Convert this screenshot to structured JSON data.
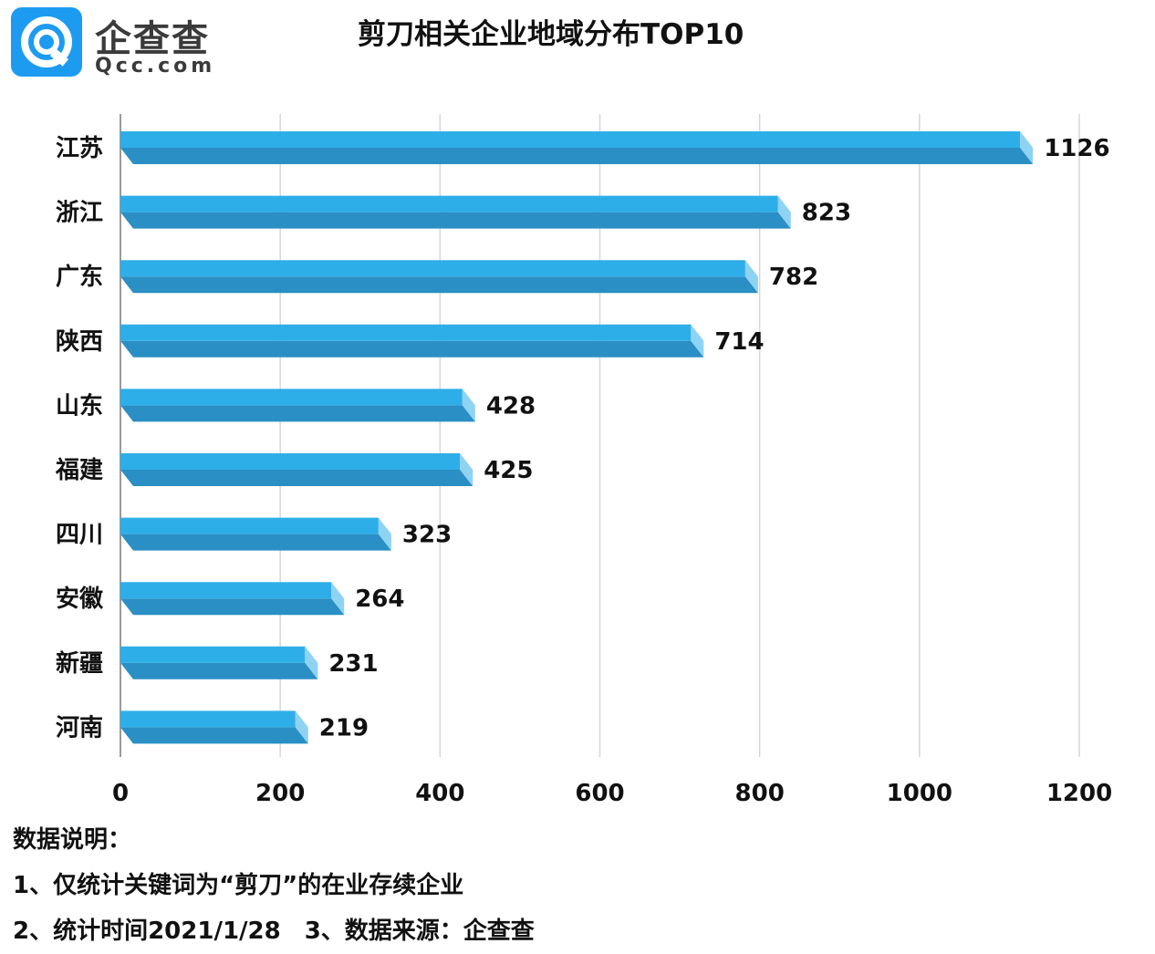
{
  "logo": {
    "name_cn": "企查查",
    "name_en": "Qcc.com"
  },
  "title": "剪刀相关企业地域分布TOP10",
  "chart_data": {
    "type": "bar",
    "orientation": "horizontal",
    "title": "剪刀相关企业地域分布TOP10",
    "categories": [
      "江苏",
      "浙江",
      "广东",
      "陕西",
      "山东",
      "福建",
      "四川",
      "安徽",
      "新疆",
      "河南"
    ],
    "values": [
      1126,
      823,
      782,
      714,
      428,
      425,
      323,
      264,
      231,
      219
    ],
    "xlim": [
      0,
      1200
    ],
    "xticks": [
      "0",
      "200",
      "400",
      "600",
      "800",
      "1000",
      "1200"
    ],
    "grid": true,
    "bar_color": "#2eaee8",
    "bar_dark": "#2a8fc4",
    "xlabel": "",
    "ylabel": ""
  },
  "notes": {
    "heading": "数据说明：",
    "line1": "1、仅统计关键词为“剪刀”的在业存续企业",
    "line2": "2、统计时间2021/1/28　3、数据来源：企查查"
  }
}
